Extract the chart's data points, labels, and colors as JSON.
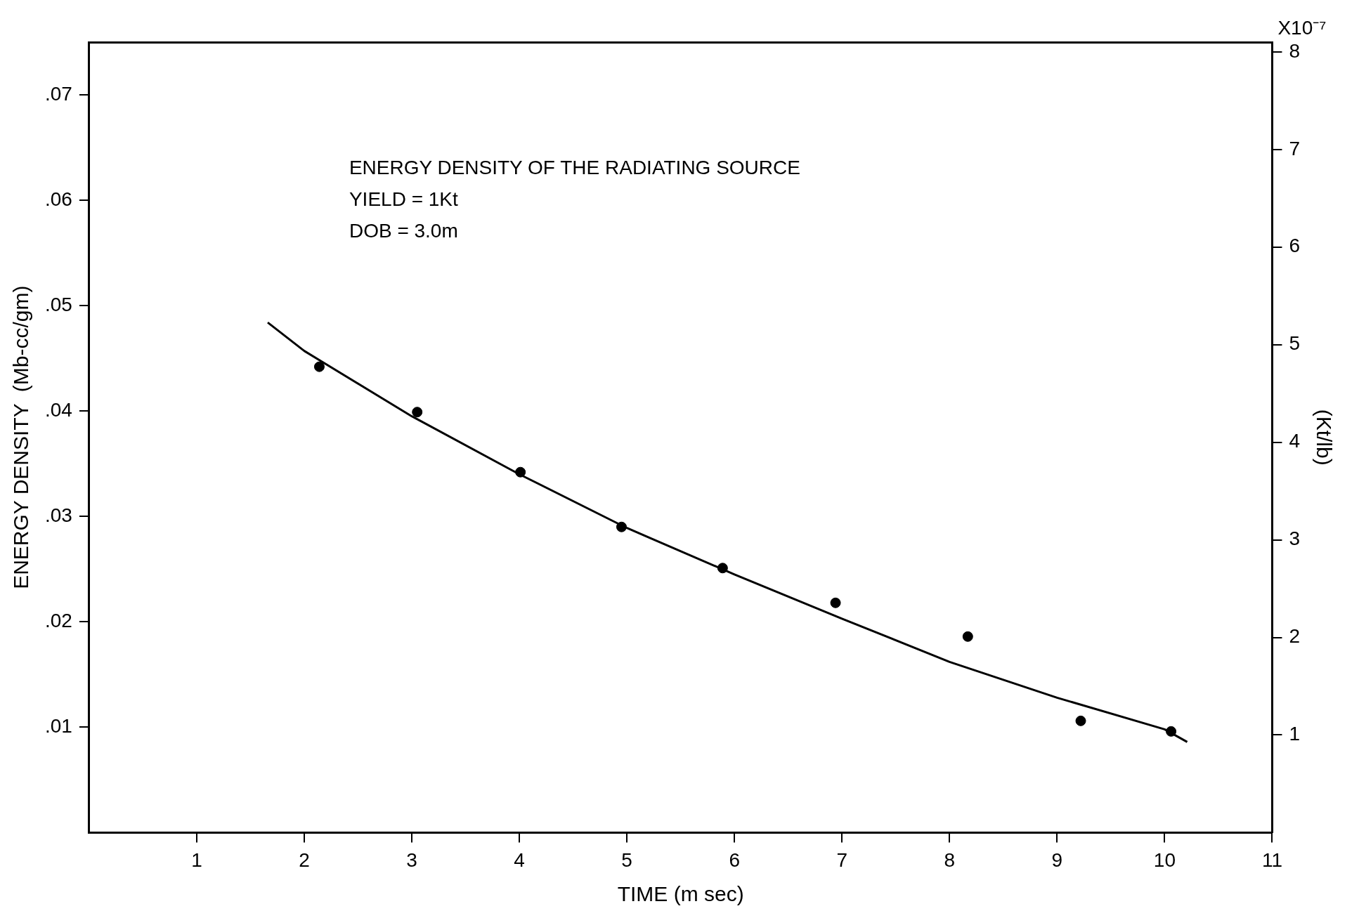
{
  "chart_data": {
    "type": "scatter",
    "xlabel": "TIME (m sec)",
    "ylabel": "ENERGY DENSITY  (Mb-cc/gm)",
    "y2label": "(Kt/lb)",
    "annotations": [
      "ENERGY DENSITY OF THE RADIATING SOURCE",
      "YIELD = 1Kt",
      "DOB = 3.0m",
      "X10⁻⁷"
    ],
    "xlim": [
      0,
      11
    ],
    "xticks": [
      1,
      2,
      3,
      4,
      5,
      6,
      7,
      8,
      9,
      10,
      11
    ],
    "ylim": [
      0,
      0.075
    ],
    "yticks": [
      {
        "value": 0.01,
        "label": ".01"
      },
      {
        "value": 0.02,
        "label": ".02"
      },
      {
        "value": 0.03,
        "label": ".03"
      },
      {
        "value": 0.04,
        "label": ".04"
      },
      {
        "value": 0.05,
        "label": ".05"
      },
      {
        "value": 0.06,
        "label": ".06"
      },
      {
        "value": 0.07,
        "label": ".07"
      }
    ],
    "y2lim": [
      0,
      8.1
    ],
    "y2ticks": [
      1,
      2,
      3,
      4,
      5,
      6,
      7,
      8
    ],
    "grid": false,
    "marker": "circle",
    "legend": false,
    "series": [
      {
        "color": "#000000",
        "x": [
          2.14,
          3.05,
          4.01,
          4.95,
          5.89,
          6.94,
          8.17,
          9.22,
          10.06
        ],
        "values": [
          0.0442,
          0.0399,
          0.0342,
          0.029,
          0.0251,
          0.0218,
          0.0186,
          0.0106,
          0.0096
        ]
      },
      {
        "type": "line",
        "color": "#000000",
        "marker": "none",
        "line_style": "solid",
        "x": [
          1.66,
          2,
          3,
          4,
          5,
          6,
          7,
          8,
          9,
          10,
          10.21
        ],
        "values": [
          0.0484,
          0.0457,
          0.0395,
          0.034,
          0.0289,
          0.0245,
          0.0203,
          0.0162,
          0.0128,
          0.0098,
          0.0086
        ]
      }
    ]
  }
}
